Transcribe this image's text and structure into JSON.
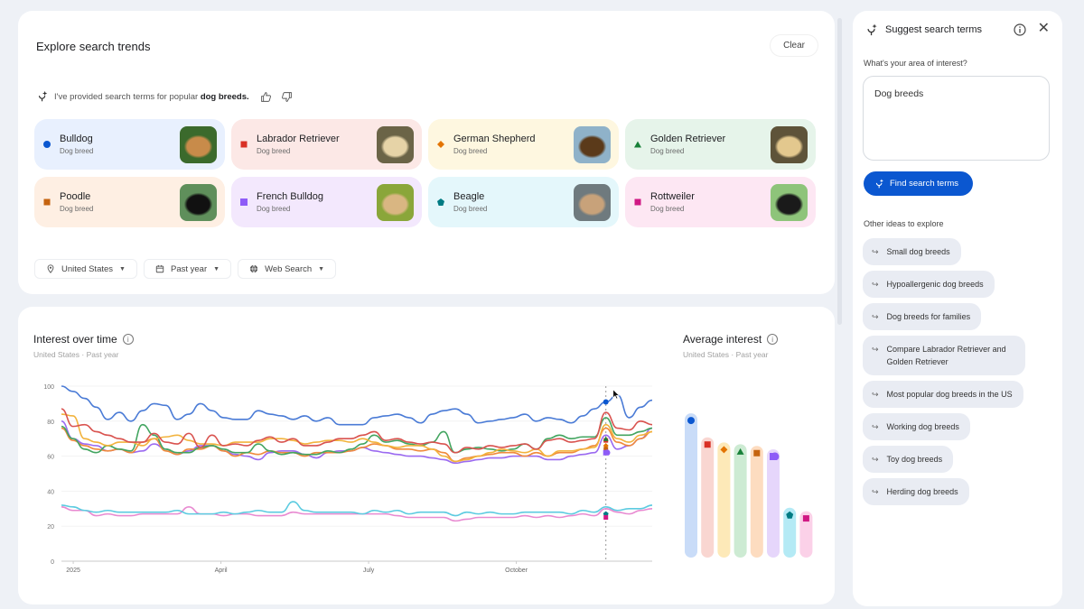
{
  "header": {
    "title": "Explore search trends",
    "clear_label": "Clear"
  },
  "ai_note": {
    "prefix": "I've provided search terms for popular ",
    "highlight": "dog breeds.",
    "icons": [
      "sparkle-icon",
      "thumbs-up-icon",
      "thumbs-down-icon"
    ]
  },
  "terms": [
    {
      "name": "Bulldog",
      "sub": "Dog breed",
      "shape": "circle",
      "color": "#0b57d0",
      "bg": "#e8f0fe",
      "thumb": [
        "#3b6a2c",
        "#c88b4a"
      ]
    },
    {
      "name": "Labrador Retriever",
      "sub": "Dog breed",
      "shape": "square",
      "color": "#d93025",
      "bg": "#fce8e6",
      "thumb": [
        "#6b6447",
        "#e6d3a7"
      ]
    },
    {
      "name": "German Shepherd",
      "sub": "Dog breed",
      "shape": "diamond",
      "color": "#e37400",
      "bg": "#fef7e0",
      "thumb": [
        "#8fb2c9",
        "#5b3a1a"
      ]
    },
    {
      "name": "Golden Retriever",
      "sub": "Dog breed",
      "shape": "triangle",
      "color": "#188038",
      "bg": "#e6f4ea",
      "thumb": [
        "#5e5339",
        "#e3c88e"
      ]
    },
    {
      "name": "Poodle",
      "sub": "Dog breed",
      "shape": "square",
      "color": "#c5630f",
      "bg": "#feefe3",
      "thumb": [
        "#5f8f5b",
        "#111111"
      ]
    },
    {
      "name": "French Bulldog",
      "sub": "Dog breed",
      "shape": "quarter",
      "color": "#8e5cf7",
      "bg": "#f3e8fd",
      "thumb": [
        "#8aa63a",
        "#d9b682"
      ]
    },
    {
      "name": "Beagle",
      "sub": "Dog breed",
      "shape": "pentagon",
      "color": "#007b83",
      "bg": "#e4f7fb",
      "thumb": [
        "#6f7a7e",
        "#c8a27a"
      ]
    },
    {
      "name": "Rottweiler",
      "sub": "Dog breed",
      "shape": "square",
      "color": "#d01884",
      "bg": "#fde7f3",
      "thumb": [
        "#8ec47a",
        "#1a1a1a"
      ]
    }
  ],
  "filters": [
    {
      "label": "United States",
      "icon": "location-pin-icon"
    },
    {
      "label": "Past year",
      "icon": "calendar-icon"
    },
    {
      "label": "Web Search",
      "icon": "globe-icon"
    }
  ],
  "interest_over_time": {
    "title": "Interest over time",
    "subtitle": "United States · Past year"
  },
  "average_interest": {
    "title": "Average interest",
    "subtitle": "United States · Past year"
  },
  "side_panel": {
    "title": "Suggest search terms",
    "question": "What's your area of interest?",
    "input_value": "Dog breeds",
    "find_label": "Find search terms",
    "other_label": "Other ideas to explore",
    "ideas": [
      "Small dog breeds",
      "Hypoallergenic dog breeds",
      "Dog breeds for families",
      "Compare Labrador Retriever and Golden Retriever",
      "Most popular dog breeds in the US",
      "Working dog breeds",
      "Toy dog breeds",
      "Herding dog breeds"
    ]
  },
  "chart_data": [
    {
      "type": "line",
      "title": "Interest over time",
      "subtitle": "United States · Past year",
      "xlabel": "",
      "ylabel": "",
      "ylim": [
        0,
        100
      ],
      "yticks": [
        0,
        20,
        40,
        60,
        80,
        100
      ],
      "xticks": [
        "2025",
        "April",
        "July",
        "October"
      ],
      "grid": true,
      "x": [
        0,
        1,
        2,
        3,
        4,
        5,
        6,
        7,
        8,
        9,
        10,
        11,
        12,
        13,
        14,
        15,
        16,
        17,
        18,
        19,
        20,
        21,
        22,
        23,
        24,
        25,
        26,
        27,
        28,
        29,
        30,
        31,
        32,
        33,
        34,
        35,
        36,
        37,
        38,
        39,
        40,
        41,
        42,
        43,
        44,
        45,
        46,
        47,
        48,
        49,
        50,
        51
      ],
      "series": [
        {
          "name": "Bulldog",
          "color": "#4a7bd6",
          "values": [
            100,
            97,
            93,
            88,
            81,
            85,
            80,
            86,
            90,
            89,
            81,
            84,
            90,
            86,
            82,
            81,
            81,
            86,
            84,
            83,
            81,
            83,
            80,
            82,
            78,
            78,
            78,
            82,
            83,
            84,
            82,
            79,
            84,
            86,
            87,
            84,
            79,
            80,
            81,
            82,
            84,
            80,
            82,
            81,
            79,
            83,
            87,
            91,
            95,
            82,
            88,
            92
          ]
        },
        {
          "name": "Labrador Retriever",
          "color": "#d9534f",
          "values": [
            87,
            77,
            78,
            74,
            72,
            70,
            68,
            68,
            73,
            68,
            67,
            73,
            65,
            72,
            66,
            67,
            66,
            69,
            71,
            68,
            70,
            66,
            66,
            68,
            70,
            70,
            72,
            74,
            69,
            70,
            68,
            67,
            68,
            67,
            62,
            65,
            64,
            66,
            65,
            66,
            67,
            64,
            69,
            70,
            68,
            69,
            70,
            85,
            76,
            75,
            80,
            78
          ]
        },
        {
          "name": "German Shepherd",
          "color": "#f2b33d",
          "values": [
            84,
            83,
            70,
            68,
            66,
            68,
            68,
            66,
            70,
            71,
            72,
            69,
            67,
            67,
            66,
            68,
            68,
            68,
            70,
            70,
            69,
            67,
            68,
            69,
            69,
            68,
            70,
            68,
            66,
            65,
            66,
            66,
            64,
            60,
            57,
            58,
            60,
            62,
            64,
            63,
            62,
            64,
            60,
            63,
            63,
            64,
            65,
            78,
            70,
            68,
            72,
            74
          ]
        },
        {
          "name": "Golden Retriever",
          "color": "#43a560",
          "values": [
            77,
            70,
            64,
            62,
            66,
            64,
            63,
            78,
            72,
            64,
            62,
            62,
            65,
            66,
            64,
            62,
            62,
            67,
            63,
            61,
            62,
            61,
            61,
            63,
            62,
            64,
            67,
            72,
            68,
            69,
            67,
            66,
            68,
            74,
            62,
            64,
            65,
            64,
            63,
            64,
            67,
            64,
            70,
            72,
            70,
            71,
            71,
            82,
            72,
            72,
            74,
            76
          ]
        },
        {
          "name": "Poodle",
          "color": "#f08a3c",
          "values": [
            76,
            69,
            66,
            64,
            63,
            64,
            62,
            68,
            70,
            63,
            61,
            64,
            64,
            66,
            63,
            60,
            62,
            61,
            63,
            62,
            62,
            60,
            62,
            62,
            62,
            63,
            65,
            67,
            66,
            64,
            64,
            63,
            64,
            62,
            57,
            59,
            60,
            61,
            62,
            62,
            60,
            62,
            60,
            62,
            62,
            64,
            66,
            76,
            68,
            66,
            70,
            74
          ]
        },
        {
          "name": "French Bulldog",
          "color": "#9b6af0",
          "values": [
            80,
            70,
            67,
            66,
            63,
            64,
            62,
            63,
            67,
            64,
            61,
            63,
            66,
            66,
            63,
            61,
            60,
            58,
            62,
            63,
            63,
            61,
            59,
            62,
            63,
            63,
            65,
            63,
            62,
            61,
            60,
            60,
            59,
            58,
            56,
            57,
            58,
            59,
            59,
            60,
            60,
            60,
            58,
            58,
            60,
            61,
            62,
            72,
            64,
            66,
            70,
            76
          ]
        },
        {
          "name": "Beagle",
          "color": "#5ccbe0",
          "values": [
            32,
            31,
            29,
            28,
            29,
            28,
            28,
            28,
            28,
            28,
            29,
            27,
            27,
            27,
            28,
            27,
            28,
            29,
            28,
            28,
            34,
            29,
            28,
            28,
            28,
            28,
            27,
            29,
            28,
            29,
            27,
            28,
            28,
            28,
            26,
            28,
            27,
            28,
            27,
            27,
            28,
            28,
            28,
            28,
            27,
            29,
            28,
            31,
            29,
            30,
            30,
            32
          ]
        },
        {
          "name": "Rottweiler",
          "color": "#e88ad1",
          "values": [
            31,
            29,
            29,
            26,
            27,
            26,
            26,
            27,
            27,
            27,
            27,
            31,
            27,
            27,
            26,
            27,
            27,
            26,
            26,
            26,
            28,
            27,
            27,
            27,
            27,
            27,
            27,
            27,
            27,
            26,
            25,
            25,
            25,
            25,
            23,
            24,
            25,
            25,
            25,
            25,
            26,
            25,
            26,
            25,
            26,
            27,
            26,
            30,
            28,
            27,
            29,
            30
          ]
        }
      ]
    },
    {
      "type": "bar",
      "title": "Average interest",
      "subtitle": "United States · Past year",
      "categories": [
        "Bulldog",
        "Labrador Retriever",
        "German Shepherd",
        "Golden Retriever",
        "Poodle",
        "French Bulldog",
        "Beagle",
        "Rottweiler"
      ],
      "values": [
        84,
        70,
        67,
        66,
        65,
        63,
        29,
        27
      ],
      "colors": [
        "#c9dcf8",
        "#f9d6d1",
        "#fde9b8",
        "#cdebd3",
        "#fddcc0",
        "#e6d6fb",
        "#b4eaf5",
        "#fbd1e8"
      ],
      "marker_colors": [
        "#0b57d0",
        "#d93025",
        "#e37400",
        "#188038",
        "#c5630f",
        "#8e5cf7",
        "#007b83",
        "#d01884"
      ],
      "ylim": [
        0,
        100
      ]
    }
  ]
}
